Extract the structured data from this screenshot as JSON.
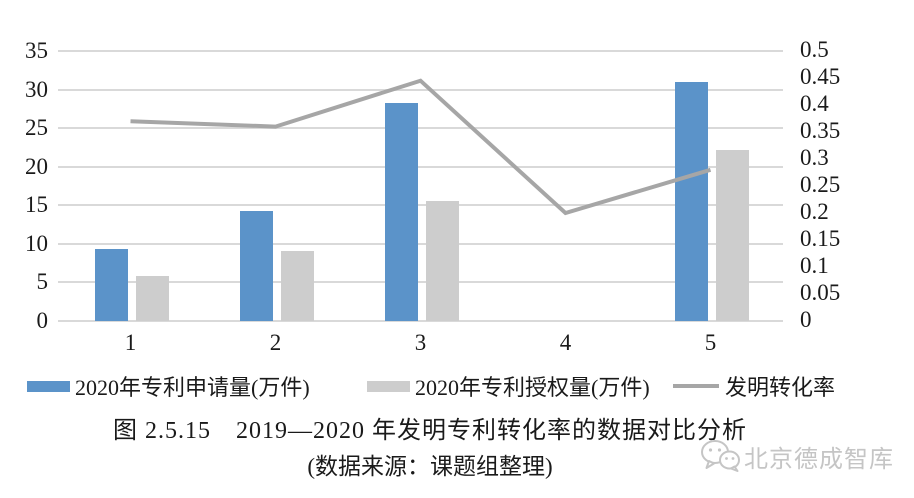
{
  "chart_data": {
    "type": "bar",
    "subtype": "bar+line combo",
    "categories": [
      "1",
      "2",
      "3",
      "4",
      "5"
    ],
    "series": [
      {
        "name": "2020年专利申请量(万件)",
        "kind": "bar",
        "axis": "left",
        "color": "#5b93c9",
        "values": [
          9.3,
          14.3,
          28.2,
          0,
          31
        ]
      },
      {
        "name": "2020年专利授权量(万件)",
        "kind": "bar",
        "axis": "left",
        "color": "#cdcdcd",
        "values": [
          5.8,
          9.1,
          15.5,
          0,
          22.2
        ]
      },
      {
        "name": "发明转化率",
        "kind": "line",
        "axis": "right",
        "color": "#a6a6a6",
        "values": [
          0.37,
          0.36,
          0.445,
          0.2,
          0.28
        ]
      }
    ],
    "left_axis": {
      "min": 0,
      "max": 35,
      "step": 5,
      "ticks": [
        "35",
        "30",
        "25",
        "20",
        "15",
        "10",
        "5",
        "0"
      ]
    },
    "right_axis": {
      "min": 0,
      "max": 0.5,
      "step": 0.05,
      "ticks": [
        "0.5",
        "0.45",
        "0.4",
        "0.35",
        "0.3",
        "0.25",
        "0.2",
        "0.15",
        "0.1",
        "0.05",
        "0"
      ]
    },
    "grid": true,
    "legend_position": "bottom",
    "grid_color": "#d9d9d9"
  },
  "caption": {
    "text": "图 2.5.15　2019—2020 年发明专利转化率的数据对比分析",
    "source": "(数据来源：课题组整理)"
  },
  "watermark": {
    "icon": "wechat-logo-icon",
    "text": "北京德成智库",
    "color": "#c5c5c5"
  }
}
